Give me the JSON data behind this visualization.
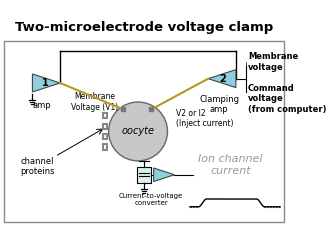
{
  "title": "Two-microelectrode voltage clamp",
  "bg_color": "#ffffff",
  "border_color": "#888888",
  "amp_color": "#8ecfdf",
  "oocyte_color": "#c8c8c8",
  "wire_color": "#000000",
  "electrode_wire_color": "#b89820",
  "text_labels": {
    "amp1": "amp",
    "amp2": "Clamping\namp",
    "membrane_v1": "Membrane\nVoltage (V1)",
    "v2_i2": "V2 or I2\n(Inject current)",
    "oocyte": "oocyte",
    "channel_proteins": "channel\nproteins",
    "membrane_voltage": "Membrane\nvoltage",
    "command_voltage": "Command\nvoltage\n(from computer)",
    "current_to_voltage": "Current-to-voltage\nconverter",
    "ion_channel_current": "Ion channel\ncurrent"
  },
  "figsize": [
    3.3,
    2.43
  ],
  "dpi": 100,
  "title_bg": "#ffffff",
  "diagram_bg": "#ffffff"
}
